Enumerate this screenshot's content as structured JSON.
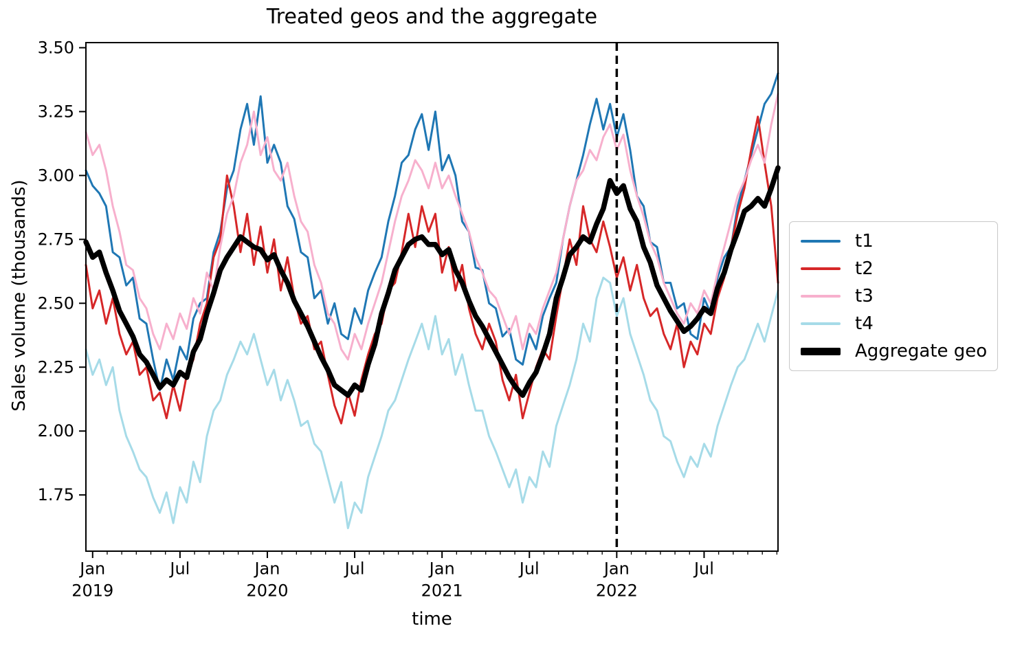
{
  "chart_data": {
    "type": "line",
    "title": "Treated geos and the aggregate",
    "xlabel": "time",
    "ylabel": "Sales volume (thousands)",
    "ylim": [
      1.53,
      3.52
    ],
    "yticks": [
      "1.75",
      "2.00",
      "2.25",
      "2.50",
      "2.75",
      "3.00",
      "3.25",
      "3.50"
    ],
    "grid": false,
    "legend_position": "right of plot",
    "x_sampling": "biweekly points, Jan 2019 through Dec 2022",
    "xticks_major": [
      {
        "idx": 1,
        "month": "Jan",
        "year": "2019"
      },
      {
        "idx": 14,
        "month": "Jul",
        "year": ""
      },
      {
        "idx": 27,
        "month": "Jan",
        "year": "2020"
      },
      {
        "idx": 40,
        "month": "Jul",
        "year": ""
      },
      {
        "idx": 53,
        "month": "Jan",
        "year": "2021"
      },
      {
        "idx": 66,
        "month": "Jul",
        "year": ""
      },
      {
        "idx": 79,
        "month": "Jan",
        "year": "2022"
      },
      {
        "idx": 92,
        "month": "Jul",
        "year": ""
      }
    ],
    "xticks_minor": {
      "start_idx": 1,
      "step_idx": 2.16667,
      "count": 48
    },
    "event_line": {
      "idx": 79,
      "color": "#000000",
      "style": "dashed"
    },
    "series": [
      {
        "name": "t1",
        "color": "#1f77b4",
        "linewidth": 3,
        "values": [
          3.02,
          2.96,
          2.93,
          2.88,
          2.7,
          2.68,
          2.57,
          2.6,
          2.44,
          2.42,
          2.28,
          2.16,
          2.28,
          2.2,
          2.33,
          2.28,
          2.44,
          2.5,
          2.52,
          2.7,
          2.78,
          2.95,
          3.02,
          3.18,
          3.28,
          3.12,
          3.31,
          3.05,
          3.12,
          3.05,
          2.88,
          2.83,
          2.7,
          2.68,
          2.52,
          2.55,
          2.42,
          2.5,
          2.38,
          2.36,
          2.48,
          2.42,
          2.55,
          2.62,
          2.68,
          2.82,
          2.92,
          3.05,
          3.08,
          3.18,
          3.24,
          3.1,
          3.25,
          3.02,
          3.08,
          3.0,
          2.82,
          2.78,
          2.64,
          2.63,
          2.5,
          2.48,
          2.37,
          2.4,
          2.28,
          2.26,
          2.38,
          2.32,
          2.45,
          2.52,
          2.58,
          2.75,
          2.88,
          2.98,
          3.08,
          3.2,
          3.3,
          3.18,
          3.28,
          3.15,
          3.24,
          3.1,
          2.92,
          2.88,
          2.74,
          2.72,
          2.58,
          2.58,
          2.48,
          2.5,
          2.38,
          2.36,
          2.52,
          2.46,
          2.6,
          2.68,
          2.72,
          2.88,
          2.98,
          3.08,
          3.18,
          3.28,
          3.32,
          3.4
        ]
      },
      {
        "name": "t2",
        "color": "#d62728",
        "linewidth": 3,
        "values": [
          2.65,
          2.48,
          2.55,
          2.42,
          2.52,
          2.38,
          2.3,
          2.35,
          2.22,
          2.25,
          2.12,
          2.15,
          2.05,
          2.18,
          2.08,
          2.22,
          2.28,
          2.42,
          2.5,
          2.68,
          2.75,
          3.0,
          2.88,
          2.7,
          2.85,
          2.65,
          2.8,
          2.62,
          2.75,
          2.55,
          2.68,
          2.52,
          2.42,
          2.45,
          2.32,
          2.35,
          2.22,
          2.1,
          2.03,
          2.15,
          2.06,
          2.2,
          2.3,
          2.38,
          2.42,
          2.55,
          2.58,
          2.7,
          2.85,
          2.72,
          2.88,
          2.78,
          2.85,
          2.62,
          2.72,
          2.55,
          2.65,
          2.48,
          2.38,
          2.32,
          2.42,
          2.35,
          2.2,
          2.12,
          2.22,
          2.05,
          2.15,
          2.25,
          2.32,
          2.28,
          2.45,
          2.6,
          2.75,
          2.65,
          2.88,
          2.75,
          2.7,
          2.82,
          2.72,
          2.6,
          2.68,
          2.55,
          2.65,
          2.52,
          2.45,
          2.48,
          2.38,
          2.32,
          2.42,
          2.25,
          2.35,
          2.3,
          2.42,
          2.38,
          2.52,
          2.6,
          2.72,
          2.85,
          2.95,
          3.1,
          3.23,
          3.05,
          2.88,
          2.58
        ]
      },
      {
        "name": "t3",
        "color": "#f7b0cd",
        "linewidth": 3,
        "values": [
          3.17,
          3.08,
          3.12,
          3.02,
          2.88,
          2.78,
          2.65,
          2.63,
          2.52,
          2.48,
          2.38,
          2.32,
          2.42,
          2.36,
          2.46,
          2.4,
          2.52,
          2.46,
          2.62,
          2.55,
          2.72,
          2.85,
          2.92,
          3.05,
          3.12,
          3.25,
          3.08,
          3.15,
          3.02,
          2.98,
          3.05,
          2.92,
          2.82,
          2.78,
          2.65,
          2.58,
          2.46,
          2.42,
          2.32,
          2.28,
          2.38,
          2.32,
          2.42,
          2.5,
          2.58,
          2.7,
          2.82,
          2.92,
          2.98,
          3.06,
          3.02,
          2.95,
          3.05,
          2.95,
          3.0,
          2.92,
          2.85,
          2.78,
          2.68,
          2.62,
          2.55,
          2.52,
          2.45,
          2.38,
          2.45,
          2.32,
          2.42,
          2.38,
          2.48,
          2.55,
          2.62,
          2.75,
          2.88,
          2.98,
          3.02,
          3.1,
          3.06,
          3.15,
          3.2,
          3.1,
          3.16,
          3.02,
          2.92,
          2.84,
          2.74,
          2.68,
          2.58,
          2.52,
          2.46,
          2.42,
          2.5,
          2.46,
          2.55,
          2.5,
          2.62,
          2.72,
          2.82,
          2.92,
          2.98,
          3.06,
          3.12,
          3.05,
          3.2,
          3.32
        ]
      },
      {
        "name": "t4",
        "color": "#a6dbe8",
        "linewidth": 3,
        "values": [
          2.32,
          2.22,
          2.28,
          2.18,
          2.25,
          2.08,
          1.98,
          1.92,
          1.85,
          1.82,
          1.74,
          1.68,
          1.76,
          1.64,
          1.78,
          1.72,
          1.88,
          1.8,
          1.98,
          2.08,
          2.12,
          2.22,
          2.28,
          2.35,
          2.3,
          2.38,
          2.28,
          2.18,
          2.24,
          2.12,
          2.2,
          2.12,
          2.02,
          2.04,
          1.95,
          1.92,
          1.82,
          1.72,
          1.8,
          1.62,
          1.72,
          1.68,
          1.82,
          1.9,
          1.98,
          2.08,
          2.12,
          2.2,
          2.28,
          2.35,
          2.42,
          2.32,
          2.45,
          2.3,
          2.36,
          2.22,
          2.3,
          2.18,
          2.08,
          2.08,
          1.98,
          1.92,
          1.85,
          1.78,
          1.85,
          1.72,
          1.82,
          1.78,
          1.92,
          1.86,
          2.02,
          2.1,
          2.18,
          2.28,
          2.42,
          2.35,
          2.52,
          2.6,
          2.58,
          2.45,
          2.52,
          2.38,
          2.3,
          2.22,
          2.12,
          2.08,
          1.98,
          1.96,
          1.88,
          1.82,
          1.9,
          1.86,
          1.95,
          1.9,
          2.02,
          2.1,
          2.18,
          2.25,
          2.28,
          2.35,
          2.42,
          2.35,
          2.45,
          2.55
        ]
      },
      {
        "name": "Aggregate geo",
        "color": "#000000",
        "linewidth": 7.5,
        "values": [
          2.74,
          2.68,
          2.7,
          2.62,
          2.55,
          2.47,
          2.42,
          2.37,
          2.3,
          2.27,
          2.22,
          2.17,
          2.2,
          2.18,
          2.23,
          2.21,
          2.31,
          2.36,
          2.46,
          2.54,
          2.63,
          2.68,
          2.72,
          2.76,
          2.74,
          2.72,
          2.71,
          2.67,
          2.69,
          2.63,
          2.58,
          2.51,
          2.46,
          2.41,
          2.35,
          2.29,
          2.24,
          2.18,
          2.16,
          2.14,
          2.18,
          2.16,
          2.26,
          2.34,
          2.46,
          2.54,
          2.63,
          2.68,
          2.73,
          2.75,
          2.76,
          2.73,
          2.73,
          2.69,
          2.71,
          2.63,
          2.58,
          2.51,
          2.45,
          2.41,
          2.36,
          2.31,
          2.26,
          2.21,
          2.17,
          2.14,
          2.19,
          2.23,
          2.3,
          2.38,
          2.52,
          2.6,
          2.69,
          2.72,
          2.76,
          2.74,
          2.81,
          2.87,
          2.98,
          2.93,
          2.96,
          2.87,
          2.82,
          2.72,
          2.66,
          2.57,
          2.52,
          2.47,
          2.43,
          2.39,
          2.41,
          2.44,
          2.48,
          2.46,
          2.56,
          2.62,
          2.71,
          2.78,
          2.86,
          2.88,
          2.91,
          2.88,
          2.95,
          3.03
        ]
      }
    ]
  }
}
